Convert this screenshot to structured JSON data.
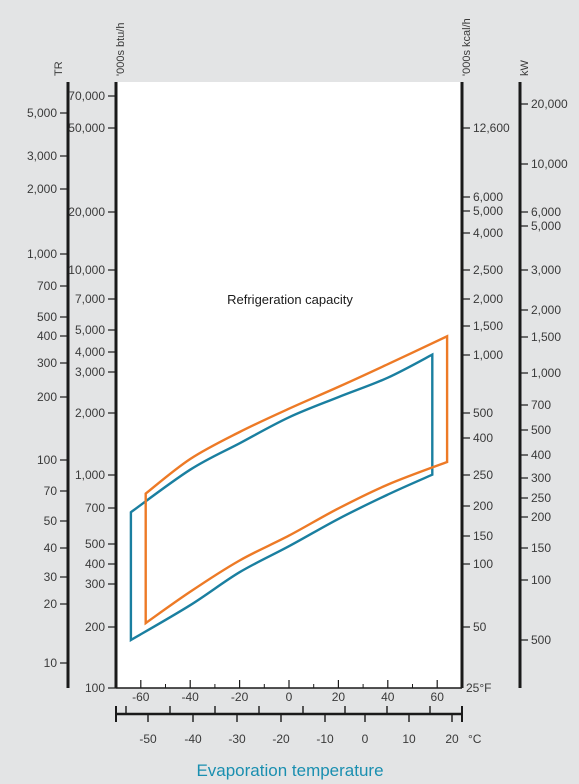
{
  "chart_data": {
    "type": "line",
    "title": "Refrigeration capacity",
    "xlabel": "Evaporation temperature",
    "x_unit_f": "°F",
    "x_unit_c": "°C",
    "x_ticks_f": [
      "-60",
      "-40",
      "-20",
      "0",
      "20",
      "40",
      "60"
    ],
    "x_end_label_f": "25°F",
    "x_ticks_c": [
      "-50",
      "-40",
      "-30",
      "-20",
      "-10",
      "0",
      "10",
      "20"
    ],
    "axes": {
      "tr": {
        "unit": "TR",
        "ticks": [
          "5,000",
          "3,000",
          "2,000",
          "1,000",
          "700",
          "500",
          "400",
          "300",
          "200",
          "100",
          "70",
          "50",
          "40",
          "30",
          "20",
          "10"
        ]
      },
      "btu": {
        "unit": "'000s btu/h",
        "ticks": [
          "70,000",
          "50,000",
          "20,000",
          "10,000",
          "7,000",
          "5,000",
          "4,000",
          "3,000",
          "2,000",
          "1,000",
          "700",
          "500",
          "400",
          "300",
          "200",
          "100"
        ]
      },
      "kcal": {
        "unit": "'000s kcal/h",
        "ticks": [
          "12,600",
          "6,000",
          "5,000",
          "4,000",
          "2,500",
          "2,000",
          "1,500",
          "1,000",
          "500",
          "400",
          "250",
          "200",
          "150",
          "100",
          "50"
        ]
      },
      "kw": {
        "unit": "kW",
        "ticks": [
          "20,000",
          "10,000",
          "6,000",
          "5,000",
          "3,000",
          "2,000",
          "1,500",
          "1,000",
          "700",
          "500",
          "400",
          "300",
          "250",
          "200",
          "150",
          "100",
          "500"
        ]
      }
    },
    "series": [
      {
        "color": "#1a7fa0",
        "upper": [
          [
            -64,
            700
          ],
          [
            -40,
            1120
          ],
          [
            -20,
            1500
          ],
          [
            0,
            2000
          ],
          [
            20,
            2500
          ],
          [
            40,
            3100
          ],
          [
            58,
            4000
          ]
        ],
        "lower": [
          [
            -64,
            170
          ],
          [
            -40,
            250
          ],
          [
            -20,
            360
          ],
          [
            0,
            480
          ],
          [
            20,
            650
          ],
          [
            40,
            850
          ],
          [
            58,
            1060
          ]
        ]
      },
      {
        "color": "#ed7a26",
        "upper": [
          [
            -58,
            860
          ],
          [
            -40,
            1260
          ],
          [
            -20,
            1700
          ],
          [
            0,
            2200
          ],
          [
            20,
            2800
          ],
          [
            40,
            3600
          ],
          [
            64,
            4900
          ]
        ],
        "lower": [
          [
            -58,
            205
          ],
          [
            -40,
            290
          ],
          [
            -20,
            410
          ],
          [
            0,
            540
          ],
          [
            20,
            730
          ],
          [
            40,
            950
          ],
          [
            64,
            1220
          ]
        ]
      }
    ]
  }
}
